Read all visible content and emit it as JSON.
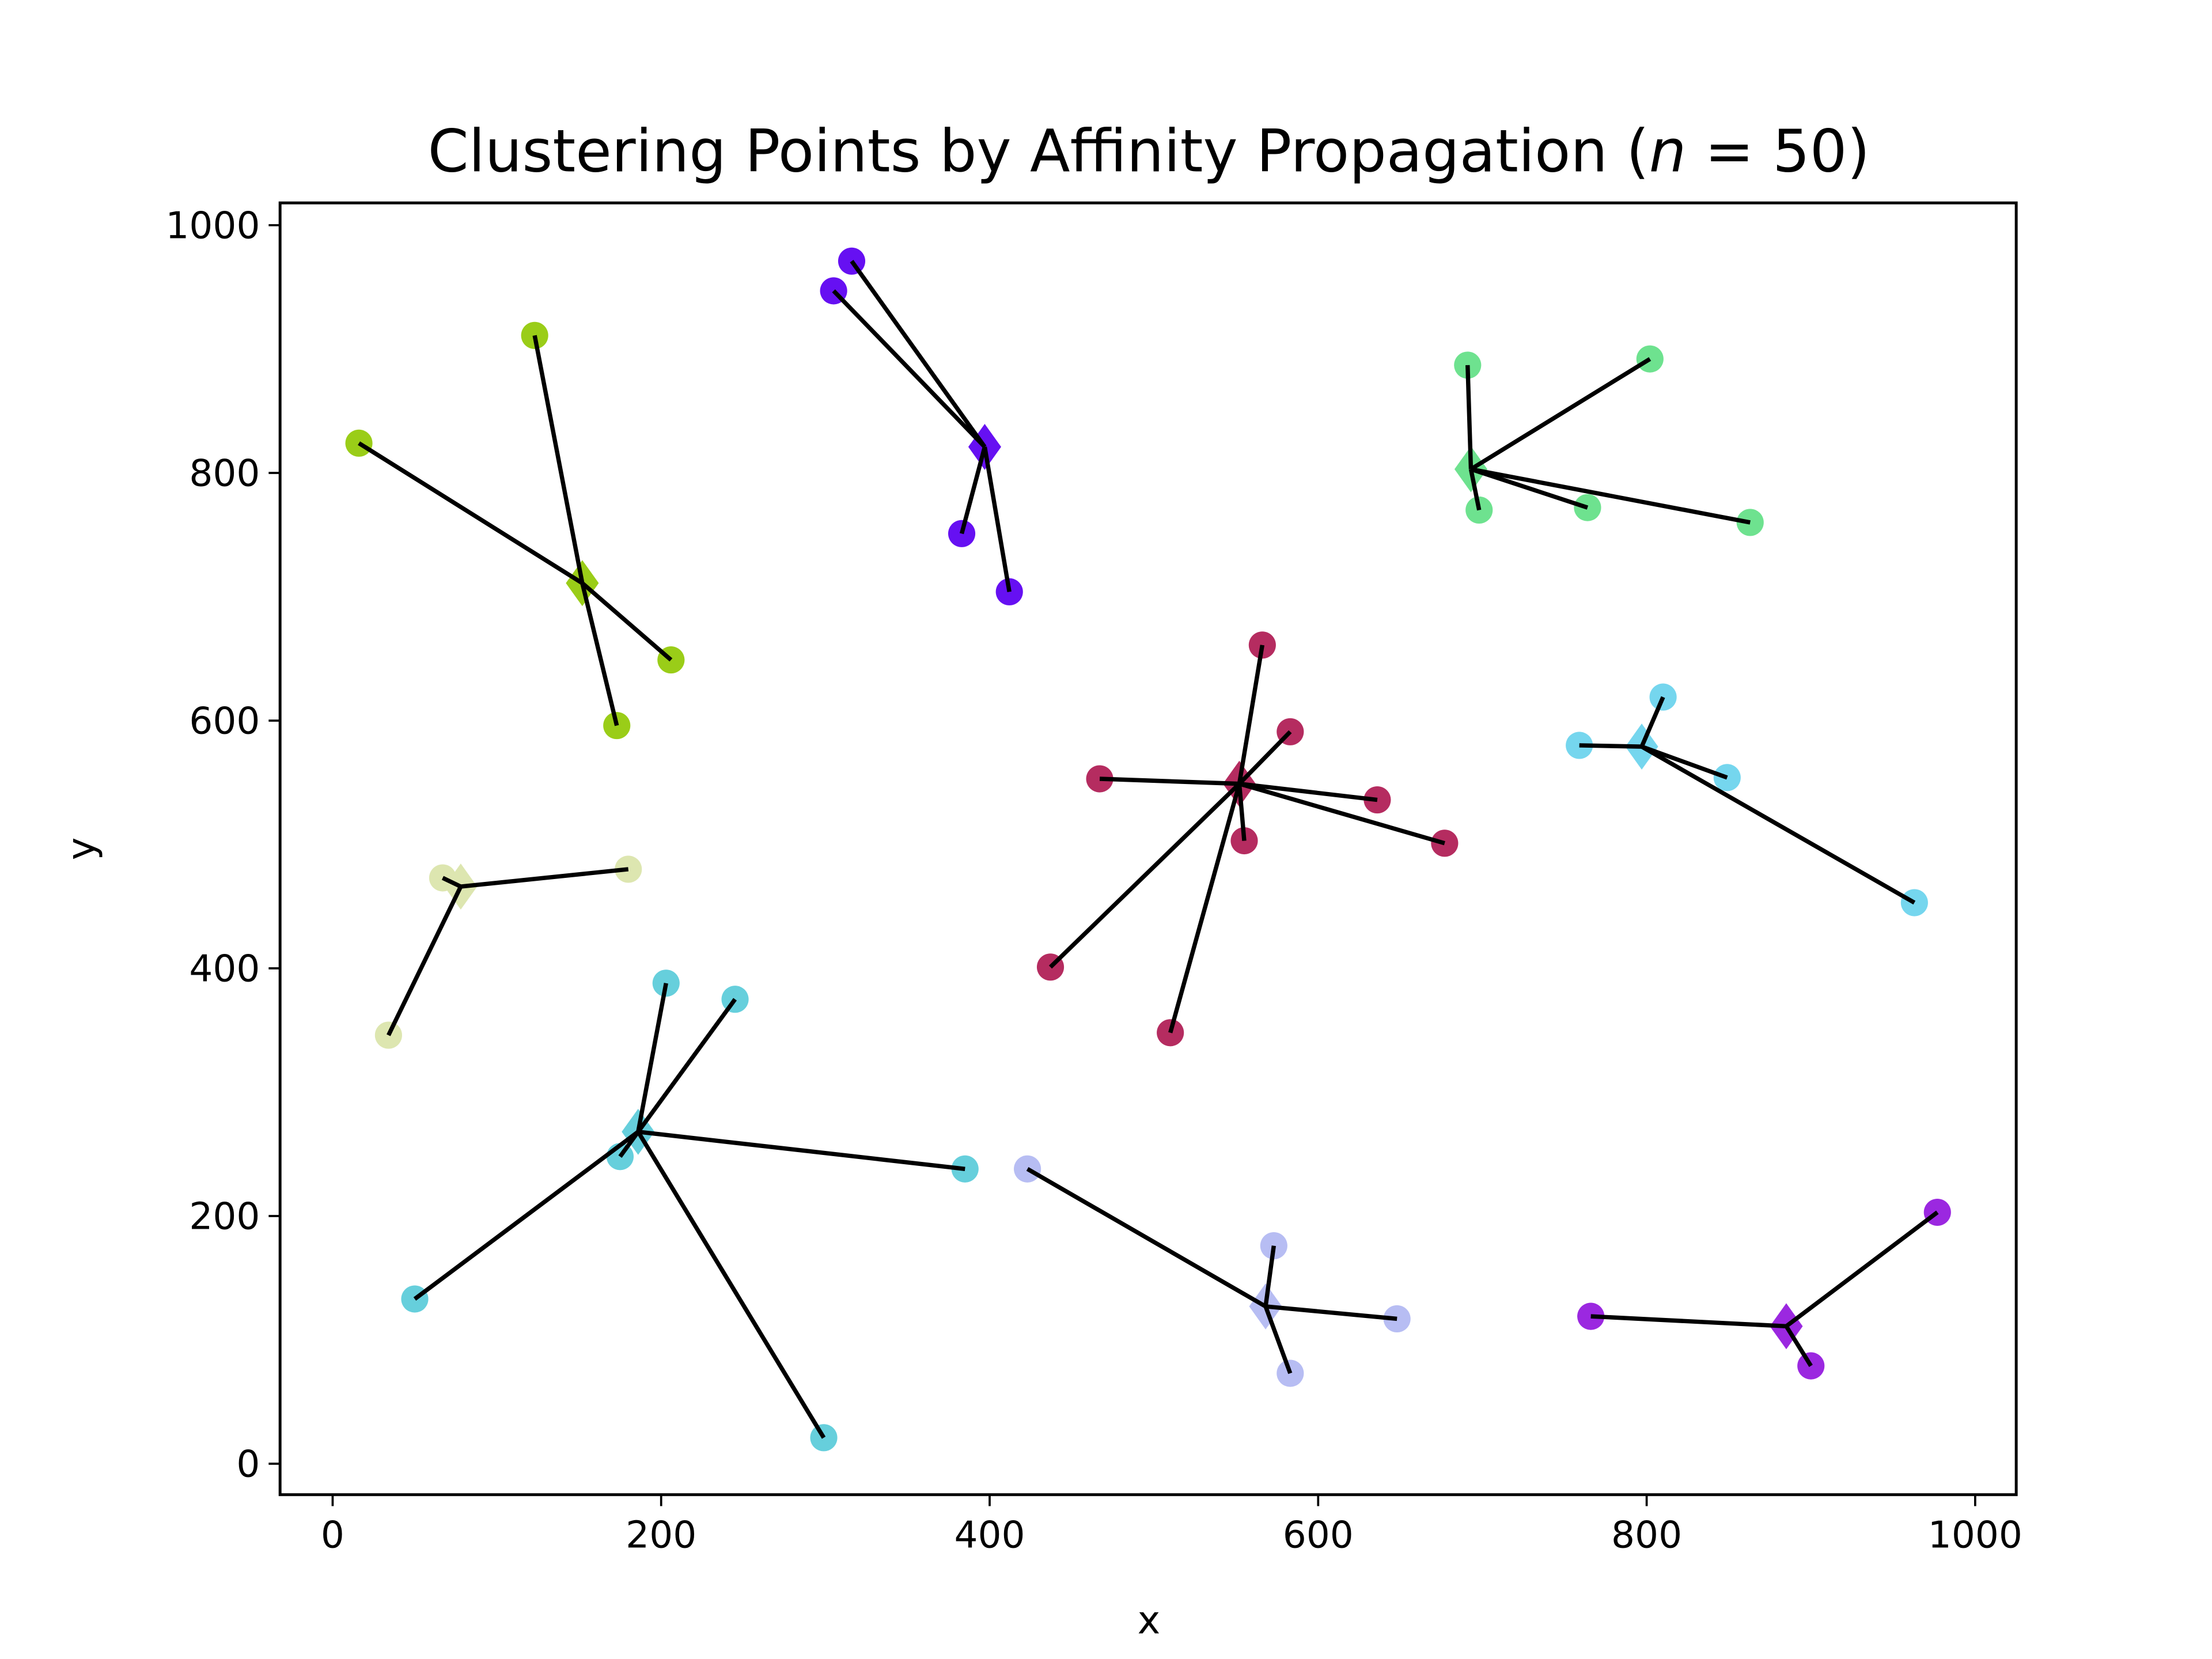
{
  "chart_data": {
    "type": "scatter",
    "title": "Clustering Points by Affinity Propagation (n = 50)",
    "title_parts": {
      "prefix": "Clustering Points by Affinity Propagation (",
      "var": "n",
      "suffix": " = 50)"
    },
    "xlabel": "x",
    "ylabel": "y",
    "xlim": [
      -32,
      1025
    ],
    "ylim": [
      -25,
      1018
    ],
    "xticks": [
      0,
      200,
      400,
      600,
      800,
      1000
    ],
    "yticks": [
      0,
      200,
      400,
      600,
      800,
      1000
    ],
    "grid": false,
    "point_marker": "circle",
    "exemplar_marker": "diamond",
    "link_color": "#000000",
    "clusters": [
      {
        "color": "#9acd18",
        "exemplar": [
          152,
          711
        ],
        "points": [
          [
            16,
            824
          ],
          [
            123,
            911
          ],
          [
            206,
            649
          ],
          [
            173,
            596
          ]
        ]
      },
      {
        "color": "#6610f2",
        "exemplar": [
          397,
          821
        ],
        "points": [
          [
            316,
            971
          ],
          [
            305,
            947
          ],
          [
            383,
            751
          ],
          [
            412,
            704
          ]
        ]
      },
      {
        "color": "#6ee28f",
        "exemplar": [
          693,
          803
        ],
        "points": [
          [
            691,
            887
          ],
          [
            802,
            892
          ],
          [
            698,
            770
          ],
          [
            764,
            772
          ],
          [
            863,
            760
          ]
        ]
      },
      {
        "color": "#b52c60",
        "exemplar": [
          552,
          549
        ],
        "points": [
          [
            566,
            661
          ],
          [
            583,
            591
          ],
          [
            467,
            553
          ],
          [
            636,
            536
          ],
          [
            677,
            501
          ],
          [
            555,
            503
          ],
          [
            437,
            401
          ],
          [
            510,
            348
          ]
        ]
      },
      {
        "color": "#75d6ee",
        "exemplar": [
          797,
          579
        ],
        "points": [
          [
            759,
            580
          ],
          [
            810,
            619
          ],
          [
            849,
            554
          ],
          [
            963,
            453
          ]
        ]
      },
      {
        "color": "#dde6b0",
        "exemplar": [
          78,
          466
        ],
        "points": [
          [
            67,
            473
          ],
          [
            180,
            480
          ],
          [
            34,
            346
          ]
        ]
      },
      {
        "color": "#66cfdc",
        "exemplar": [
          186,
          268
        ],
        "points": [
          [
            203,
            388
          ],
          [
            245,
            375
          ],
          [
            175,
            248
          ],
          [
            50,
            133
          ],
          [
            385,
            238
          ],
          [
            299,
            21
          ]
        ]
      },
      {
        "color": "#b7bdf3",
        "exemplar": [
          568,
          127
        ],
        "points": [
          [
            423,
            238
          ],
          [
            573,
            176
          ],
          [
            648,
            117
          ],
          [
            583,
            73
          ]
        ]
      },
      {
        "color": "#9b28e0",
        "exemplar": [
          885,
          111
        ],
        "points": [
          [
            766,
            119
          ],
          [
            977,
            203
          ],
          [
            900,
            79
          ]
        ]
      }
    ]
  }
}
